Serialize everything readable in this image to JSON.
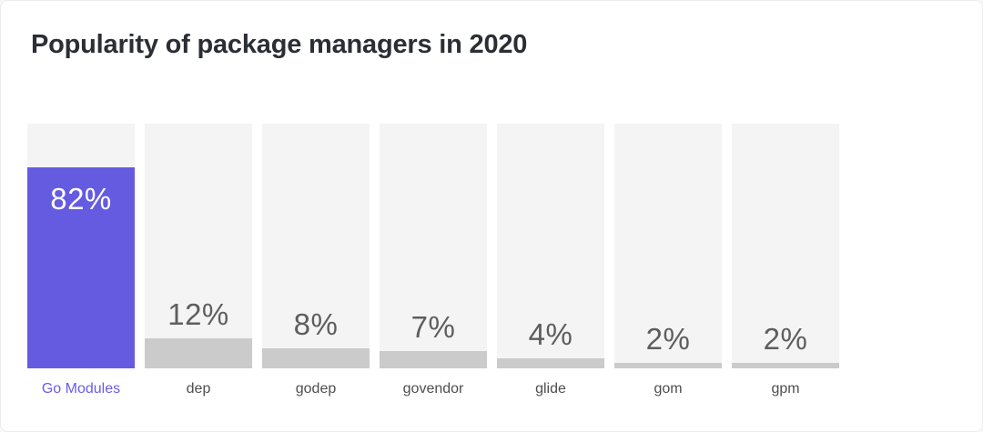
{
  "title": "Popularity of package managers in 2020",
  "chart_data": {
    "type": "bar",
    "title": "Popularity of package managers in 2020",
    "orientation": "vertical",
    "categories": [
      "Go Modules",
      "dep",
      "godep",
      "govendor",
      "glide",
      "gom",
      "gpm"
    ],
    "values": [
      82,
      12,
      8,
      7,
      4,
      2,
      2
    ],
    "value_labels": [
      "82%",
      "12%",
      "8%",
      "7%",
      "4%",
      "2%",
      "2%"
    ],
    "unit": "%",
    "ylim": [
      0,
      100
    ],
    "grid": false,
    "legend": "none",
    "highlight_index": 0,
    "colors": {
      "highlight_bar": "#655be1",
      "bar": "#cbcbcb",
      "track": "#f4f4f5",
      "highlight_value_label": "#ffffff",
      "value_label": "#5e5e5e",
      "category_label": "#4e4e4e",
      "highlight_category_label": "#6a5ce8",
      "title": "#2b2e35"
    }
  }
}
